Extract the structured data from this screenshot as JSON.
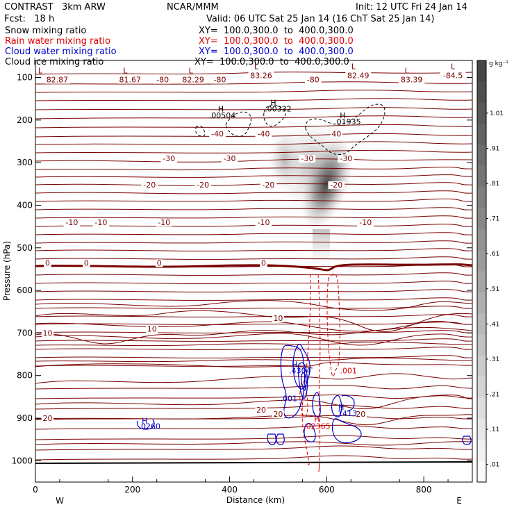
{
  "header": {
    "title": "CONTRAST   3km ARW",
    "center": "NCAR/MMM",
    "init": "Init: 12 UTC Fri 24 Jan 14",
    "fcst": "Fcst:   18 h",
    "valid": "Valid: 06 UTC Sat 25 Jan 14 (16 ChT Sat 25 Jan 14)"
  },
  "fields": [
    {
      "name": "Snow mixing ratio",
      "xy": "XY=  100.0,300.0  to  400.0,300.0",
      "color": "#000000"
    },
    {
      "name": "Rain water mixing ratio",
      "xy": "XY=  100.0,300.0  to  400.0,300.0",
      "color": "#e00000"
    },
    {
      "name": "Cloud water mixing ratio",
      "xy": "XY=  100.0,300.0  to  400.0,300.0",
      "color": "#0000cc"
    },
    {
      "name": "Cloud ice mixing ratio",
      "xy": "XY=  100.0,300.0  to  400.0,300.0",
      "color": "#000000"
    }
  ],
  "colorbar": {
    "unit": "g kg⁻¹",
    "labels": [
      "1.01",
      ".91",
      ".81",
      ".71",
      ".61",
      ".51",
      ".41",
      ".31",
      ".21",
      ".11",
      ".01"
    ]
  },
  "chart_data": {
    "type": "contour",
    "xlabel": "Distance (km)",
    "ylabel": "Pressure (hPa)",
    "xlim": [
      0,
      900
    ],
    "ylim": [
      1050,
      60
    ],
    "xticks": [
      "0",
      "200",
      "400",
      "600",
      "800"
    ],
    "yticks": [
      "100",
      "200",
      "300",
      "400",
      "500",
      "600",
      "700",
      "800",
      "900",
      "1000"
    ],
    "x_end_labels": {
      "left": "W",
      "right": "E"
    },
    "temperature_labels": [
      {
        "x": 45,
        "p": 110,
        "text": "82.87"
      },
      {
        "x": 195,
        "p": 110,
        "text": "81.67"
      },
      {
        "x": 262,
        "p": 110,
        "text": "-80"
      },
      {
        "x": 325,
        "p": 110,
        "text": "82.29"
      },
      {
        "x": 380,
        "p": 110,
        "text": "-80"
      },
      {
        "x": 465,
        "p": 100,
        "text": "83.26"
      },
      {
        "x": 572,
        "p": 110,
        "text": "-80"
      },
      {
        "x": 665,
        "p": 100,
        "text": "82.49"
      },
      {
        "x": 775,
        "p": 110,
        "text": "83.39"
      },
      {
        "x": 860,
        "p": 100,
        "text": "-84.5"
      },
      {
        "x": 375,
        "p": 237,
        "text": "-40"
      },
      {
        "x": 470,
        "p": 237,
        "text": "-40"
      },
      {
        "x": 620,
        "p": 237,
        "text": "40"
      },
      {
        "x": 275,
        "p": 295,
        "text": "-30"
      },
      {
        "x": 400,
        "p": 295,
        "text": "-30"
      },
      {
        "x": 560,
        "p": 295,
        "text": "-30"
      },
      {
        "x": 640,
        "p": 295,
        "text": "-30"
      },
      {
        "x": 235,
        "p": 357,
        "text": "-20"
      },
      {
        "x": 345,
        "p": 357,
        "text": "-20"
      },
      {
        "x": 480,
        "p": 357,
        "text": "-20"
      },
      {
        "x": 620,
        "p": 357,
        "text": "-20"
      },
      {
        "x": 75,
        "p": 445,
        "text": "-10"
      },
      {
        "x": 135,
        "p": 445,
        "text": "-10"
      },
      {
        "x": 265,
        "p": 445,
        "text": "-10"
      },
      {
        "x": 470,
        "p": 445,
        "text": "-10"
      },
      {
        "x": 680,
        "p": 445,
        "text": "-10"
      },
      {
        "x": 25,
        "p": 540,
        "text": "0"
      },
      {
        "x": 105,
        "p": 540,
        "text": "0"
      },
      {
        "x": 255,
        "p": 540,
        "text": "0"
      },
      {
        "x": 470,
        "p": 540,
        "text": "0"
      },
      {
        "x": 25,
        "p": 705,
        "text": "10"
      },
      {
        "x": 240,
        "p": 695,
        "text": "10"
      },
      {
        "x": 500,
        "p": 670,
        "text": "10"
      },
      {
        "x": 25,
        "p": 905,
        "text": "20"
      },
      {
        "x": 465,
        "p": 885,
        "text": "20"
      },
      {
        "x": 500,
        "p": 895,
        "text": "20"
      },
      {
        "x": 670,
        "p": 895,
        "text": "20"
      }
    ],
    "extrema_labels": [
      {
        "x": 10,
        "p": 90,
        "text": "L",
        "color": "#7a0000"
      },
      {
        "x": 185,
        "p": 90,
        "text": "L",
        "color": "#7a0000"
      },
      {
        "x": 320,
        "p": 90,
        "text": "L",
        "color": "#7a0000"
      },
      {
        "x": 455,
        "p": 80,
        "text": "L",
        "color": "#7a0000"
      },
      {
        "x": 655,
        "p": 80,
        "text": "L",
        "color": "#7a0000"
      },
      {
        "x": 765,
        "p": 90,
        "text": "L",
        "color": "#7a0000"
      },
      {
        "x": 860,
        "p": 80,
        "text": "L",
        "color": "#7a0000"
      },
      {
        "x": 382,
        "p": 180,
        "text": "H",
        "color": "#000000"
      },
      {
        "x": 385,
        "p": 195,
        "text": ".00504",
        "color": "#000000"
      },
      {
        "x": 490,
        "p": 165,
        "text": "H",
        "color": "#000000"
      },
      {
        "x": 500,
        "p": 180,
        "text": ".00332",
        "color": "#000000"
      },
      {
        "x": 633,
        "p": 195,
        "text": "H",
        "color": "#000000"
      },
      {
        "x": 643,
        "p": 210,
        "text": ".01935",
        "color": "#000000"
      },
      {
        "x": 534,
        "p": 780,
        "text": "H",
        "color": "#0000cc"
      },
      {
        "x": 545,
        "p": 795,
        "text": ".4304",
        "color": "#0000cc"
      },
      {
        "x": 522,
        "p": 860,
        "text": ".001",
        "color": "#0000cc"
      },
      {
        "x": 630,
        "p": 880,
        "text": "H",
        "color": "#0000cc"
      },
      {
        "x": 640,
        "p": 895,
        "text": ".1413",
        "color": "#0000cc"
      },
      {
        "x": 225,
        "p": 912,
        "text": "H",
        "color": "#0000cc"
      },
      {
        "x": 235,
        "p": 925,
        "text": ".0260",
        "color": "#0000cc"
      },
      {
        "x": 580,
        "p": 908,
        "text": "H",
        "color": "#e00000"
      },
      {
        "x": 580,
        "p": 925,
        "text": ".02365",
        "color": "#e00000"
      },
      {
        "x": 645,
        "p": 795,
        "text": ".001",
        "color": "#e00000"
      }
    ]
  }
}
